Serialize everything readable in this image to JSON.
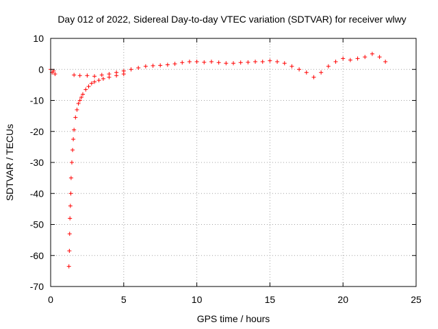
{
  "chart_data": {
    "type": "scatter",
    "title": "Day 012 of 2022, Sidereal Day-to-day VTEC variation (SDTVAR) for receiver wlwy",
    "xlabel": "GPS time / hours",
    "ylabel": "SDTVAR / TECUs",
    "xlim": [
      0,
      25
    ],
    "ylim": [
      -70,
      10
    ],
    "xticks": [
      0,
      5,
      10,
      15,
      20,
      25
    ],
    "yticks": [
      10,
      0,
      -10,
      -20,
      -30,
      -40,
      -50,
      -60,
      -70
    ],
    "xtick_labels": [
      "0",
      "5",
      "10",
      "15",
      "20",
      "25"
    ],
    "ytick_labels": [
      "10",
      "0",
      "-10",
      "-20",
      "-30",
      "-40",
      "-50",
      "-60",
      "-70"
    ],
    "grid": true,
    "marker": "+",
    "color": "#ff0000",
    "series": [
      {
        "name": "SDTVAR",
        "x": [
          0.0,
          0.1,
          0.2,
          0.3,
          1.25,
          1.28,
          1.3,
          1.32,
          1.35,
          1.38,
          1.4,
          1.45,
          1.5,
          1.55,
          1.6,
          1.7,
          1.8,
          1.9,
          2.0,
          2.1,
          2.2,
          2.4,
          2.6,
          2.8,
          3.0,
          3.3,
          3.6,
          4.0,
          4.5,
          5.0,
          1.6,
          2.0,
          2.5,
          3.0,
          3.5,
          4.0,
          4.5,
          5.0,
          5.5,
          6.0,
          6.5,
          7.0,
          7.5,
          8.0,
          8.5,
          9.0,
          9.5,
          10.0,
          10.5,
          11.0,
          11.5,
          12.0,
          12.5,
          13.0,
          13.5,
          14.0,
          14.5,
          15.0,
          15.5,
          16.0,
          16.5,
          17.0,
          17.5,
          18.0,
          18.5,
          19.0,
          19.5,
          20.0,
          20.5,
          21.0,
          21.5,
          22.0,
          22.5,
          22.9
        ],
        "y": [
          0.0,
          -1.0,
          -0.5,
          -1.5,
          -63.5,
          -58.5,
          -53.0,
          -48.0,
          -44.0,
          -40.0,
          -35.0,
          -30.0,
          -26.0,
          -22.5,
          -19.5,
          -15.5,
          -13.0,
          -11.0,
          -10.0,
          -9.0,
          -8.0,
          -6.5,
          -5.5,
          -4.5,
          -4.0,
          -3.5,
          -3.0,
          -2.5,
          -2.0,
          -1.5,
          -1.8,
          -2.0,
          -2.0,
          -2.2,
          -1.8,
          -1.5,
          -1.0,
          -0.5,
          0.0,
          0.5,
          1.0,
          1.2,
          1.3,
          1.5,
          1.8,
          2.2,
          2.5,
          2.5,
          2.3,
          2.5,
          2.2,
          2.0,
          2.0,
          2.2,
          2.3,
          2.5,
          2.5,
          2.8,
          2.5,
          2.0,
          1.0,
          0.0,
          -1.0,
          -2.5,
          -1.0,
          1.0,
          2.5,
          3.5,
          3.0,
          3.5,
          4.0,
          5.0,
          4.0,
          2.5
        ]
      }
    ]
  }
}
